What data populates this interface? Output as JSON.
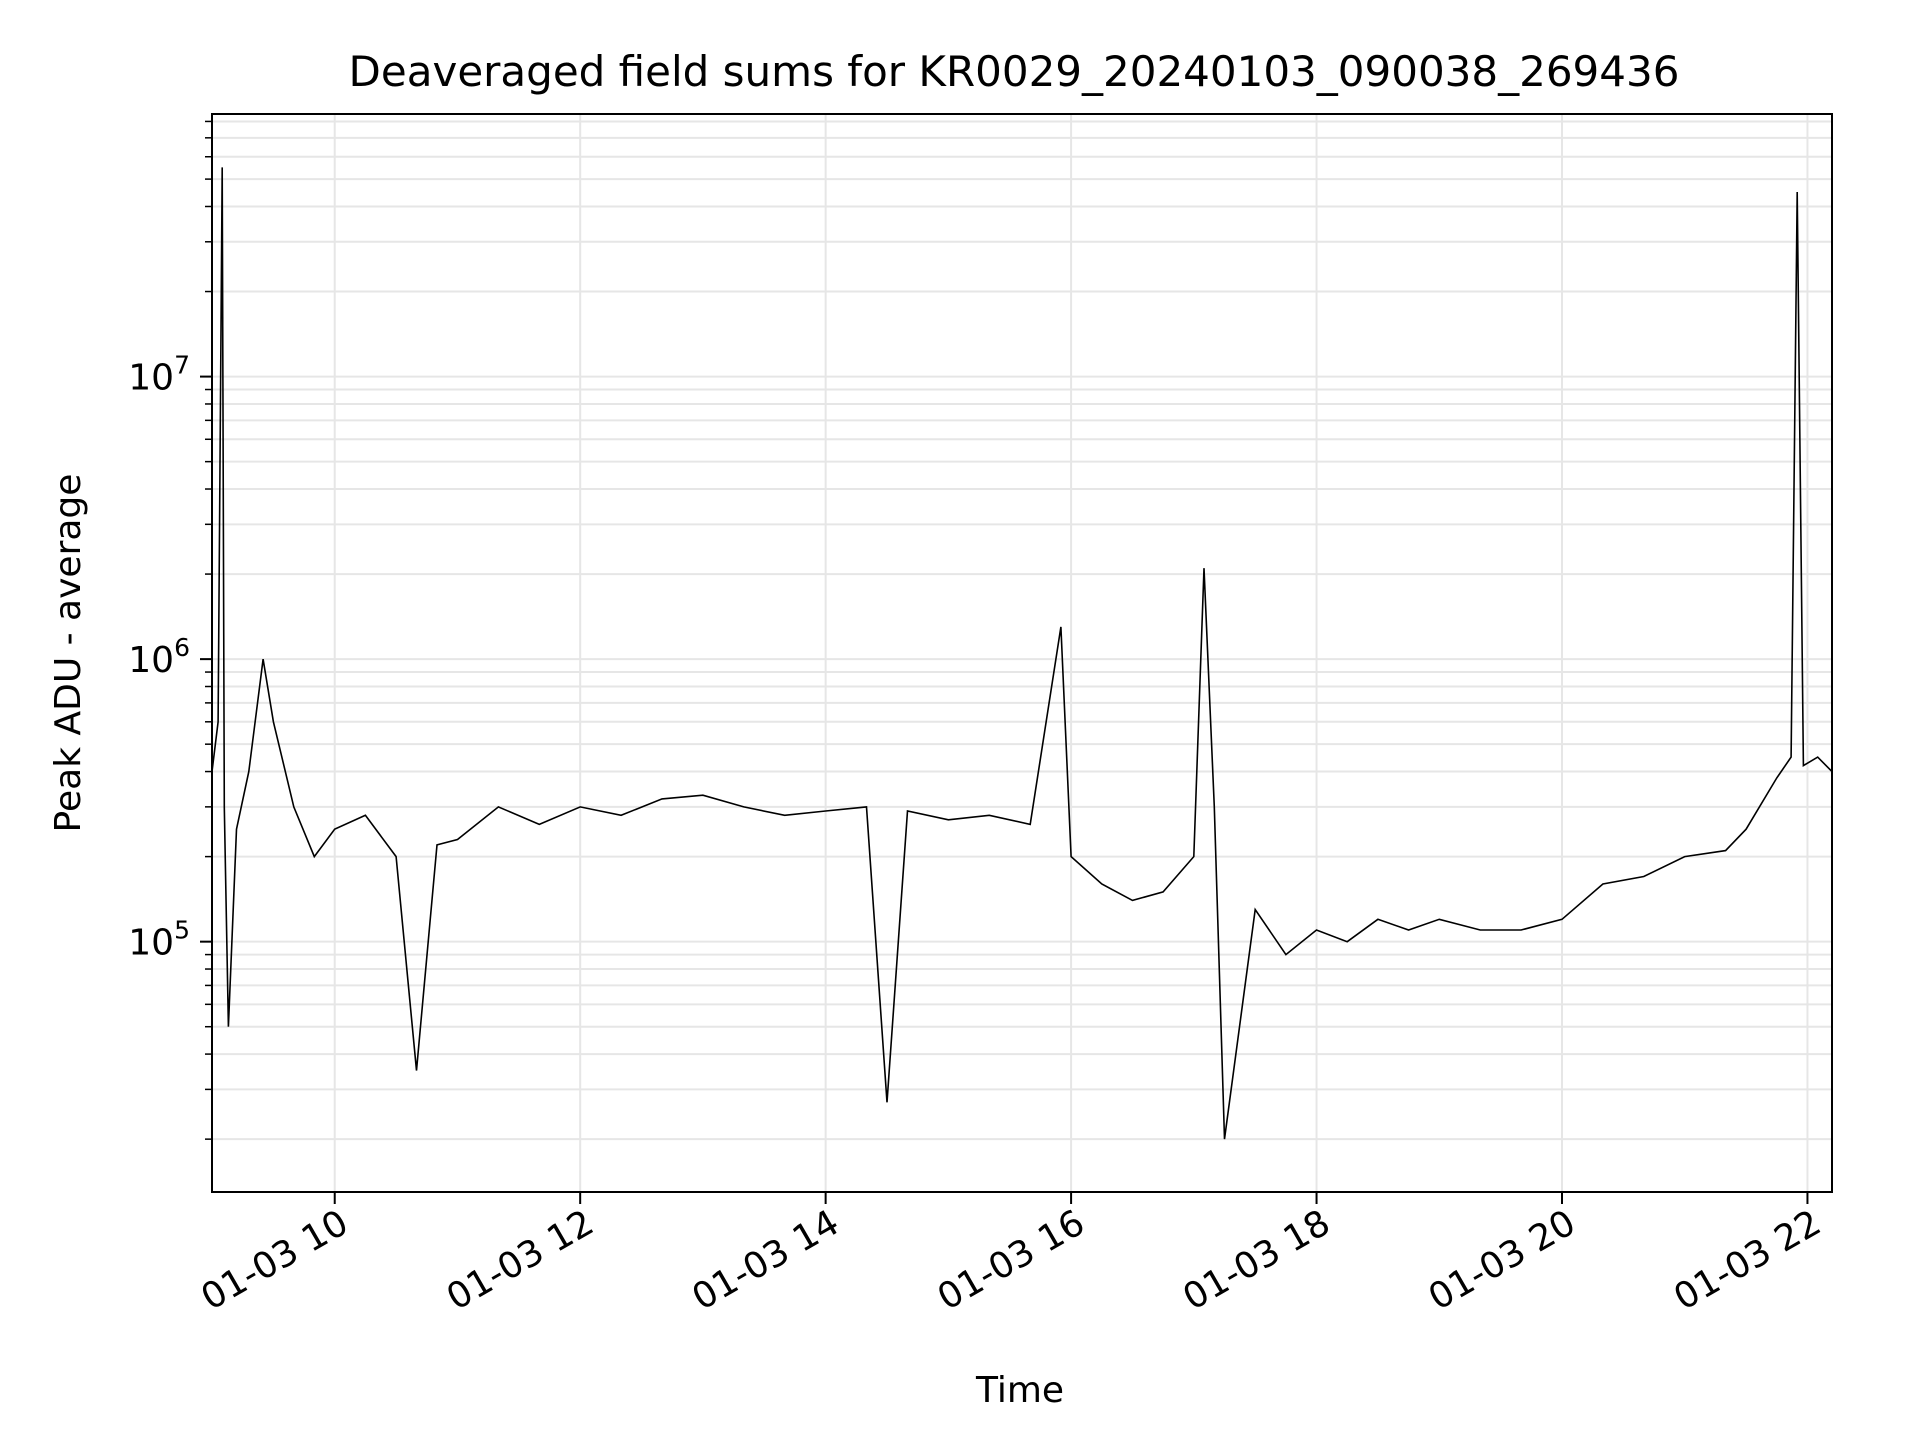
{
  "chart_data": {
    "type": "line",
    "title": "Deaveraged field sums for KR0029_20240103_090038_269436",
    "xlabel": "Time",
    "ylabel": "Peak ADU - average",
    "yscale": "log",
    "xlim": [
      "01-03 09:00",
      "01-03 22:12"
    ],
    "ylim": [
      13000,
      85000000
    ],
    "grid": true,
    "line_color": "#000000",
    "grid_color": "#e6e6e6",
    "x_ticks": [
      "01-03 10",
      "01-03 12",
      "01-03 14",
      "01-03 16",
      "01-03 18",
      "01-03 20",
      "01-03 22"
    ],
    "y_ticks": [
      {
        "base": "10",
        "exp": "5"
      },
      {
        "base": "10",
        "exp": "6"
      },
      {
        "base": "10",
        "exp": "7"
      }
    ],
    "series": [
      {
        "x": [
          "01-03 09:00",
          "01-03 09:03",
          "01-03 09:05",
          "01-03 09:06",
          "01-03 09:08",
          "01-03 09:12",
          "01-03 09:18",
          "01-03 09:25",
          "01-03 09:30",
          "01-03 09:40",
          "01-03 09:50",
          "01-03 10:00",
          "01-03 10:15",
          "01-03 10:30",
          "01-03 10:40",
          "01-03 10:50",
          "01-03 11:00",
          "01-03 11:20",
          "01-03 11:40",
          "01-03 12:00",
          "01-03 12:20",
          "01-03 12:40",
          "01-03 13:00",
          "01-03 13:20",
          "01-03 13:40",
          "01-03 14:00",
          "01-03 14:20",
          "01-03 14:30",
          "01-03 14:40",
          "01-03 15:00",
          "01-03 15:20",
          "01-03 15:40",
          "01-03 15:55",
          "01-03 16:00",
          "01-03 16:15",
          "01-03 16:30",
          "01-03 16:45",
          "01-03 17:00",
          "01-03 17:05",
          "01-03 17:10",
          "01-03 17:15",
          "01-03 17:30",
          "01-03 17:45",
          "01-03 18:00",
          "01-03 18:15",
          "01-03 18:30",
          "01-03 18:45",
          "01-03 19:00",
          "01-03 19:20",
          "01-03 19:40",
          "01-03 20:00",
          "01-03 20:20",
          "01-03 20:40",
          "01-03 21:00",
          "01-03 21:20",
          "01-03 21:30",
          "01-03 21:45",
          "01-03 21:52",
          "01-03 21:55",
          "01-03 21:58",
          "01-03 22:05",
          "01-03 22:12"
        ],
        "y": [
          400000,
          600000,
          55000000,
          300000,
          50000,
          250000,
          400000,
          1000000,
          600000,
          300000,
          200000,
          250000,
          280000,
          200000,
          35000,
          220000,
          230000,
          300000,
          260000,
          300000,
          280000,
          320000,
          330000,
          300000,
          280000,
          290000,
          300000,
          27000,
          290000,
          270000,
          280000,
          260000,
          1300000,
          200000,
          160000,
          140000,
          150000,
          200000,
          2100000,
          300000,
          20000,
          130000,
          90000,
          110000,
          100000,
          120000,
          110000,
          120000,
          110000,
          110000,
          120000,
          160000,
          170000,
          200000,
          210000,
          250000,
          380000,
          450000,
          45000000,
          420000,
          450000,
          400000
        ]
      }
    ]
  }
}
